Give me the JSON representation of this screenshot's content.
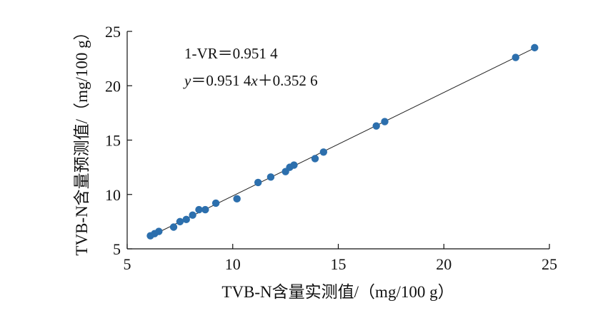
{
  "chart_data": {
    "type": "scatter",
    "xlabel": "TVB-N含量实测值/（mg/100 g）",
    "ylabel": "TVB-N含量预测值/（mg/100 g）",
    "xlim": [
      5,
      25
    ],
    "ylim": [
      5,
      25
    ],
    "xticks": [
      "5",
      "10",
      "15",
      "20",
      "25"
    ],
    "yticks": [
      "5",
      "10",
      "15",
      "20",
      "25"
    ],
    "grid": false,
    "annotations": {
      "line1": "1-VR＝0.951 4",
      "line2_y": "y",
      "line2_eq": "＝0.951 4",
      "line2_x": "x",
      "line2_rest": "＋0.352 6"
    },
    "fit_line": {
      "slope": 0.9514,
      "intercept": 0.3526,
      "x_range": [
        6.1,
        24.3
      ]
    },
    "marker_color": "#2c6fad",
    "x": [
      6.1,
      6.3,
      6.5,
      7.2,
      7.5,
      7.8,
      8.1,
      8.4,
      8.7,
      9.2,
      10.2,
      11.2,
      11.8,
      12.5,
      12.7,
      12.9,
      13.9,
      14.3,
      16.8,
      17.2,
      23.4,
      24.3
    ],
    "y": [
      6.2,
      6.4,
      6.6,
      7.0,
      7.5,
      7.7,
      8.1,
      8.6,
      8.6,
      9.2,
      9.6,
      11.1,
      11.6,
      12.1,
      12.5,
      12.7,
      13.3,
      13.9,
      16.3,
      16.7,
      22.6,
      23.5
    ]
  }
}
